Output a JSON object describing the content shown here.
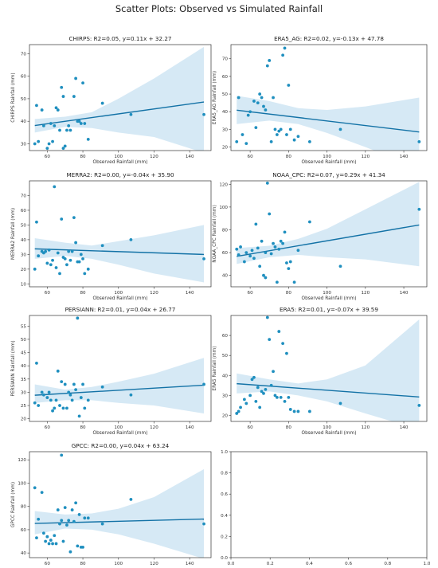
{
  "figure_title": "Scatter Plots: Observed vs Simulated Rainfall",
  "colors": {
    "point": "#1f8fbf",
    "line": "#1372a6",
    "band": "#cfe5f3",
    "axis": "#333333"
  },
  "chart_data": [
    {
      "type": "scatter",
      "title": "CHIRPS: R2=0.05, y=0.11x + 32.27",
      "xlabel": "Observed Rainfall (mm)",
      "ylabel": "CHIRPS Rainfall (mm)",
      "xlim": [
        50,
        152
      ],
      "ylim": [
        27,
        74
      ],
      "xticks": [
        60,
        80,
        100,
        120,
        140
      ],
      "yticks": [
        30,
        40,
        50,
        60,
        70
      ],
      "fit": {
        "slope": 0.11,
        "intercept": 32.27
      },
      "band": {
        "upper": [
          [
            53,
            41
          ],
          [
            70,
            42
          ],
          [
            85,
            44
          ],
          [
            100,
            50
          ],
          [
            120,
            59
          ],
          [
            148,
            73
          ]
        ],
        "lower": [
          [
            53,
            35
          ],
          [
            70,
            37.5
          ],
          [
            85,
            37
          ],
          [
            100,
            35
          ],
          [
            120,
            33
          ],
          [
            148,
            26
          ]
        ]
      },
      "x": [
        53,
        54,
        55,
        57,
        58,
        60,
        61,
        62,
        63,
        64,
        65,
        66,
        67,
        68,
        69,
        69,
        70,
        71,
        72,
        73,
        75,
        76,
        77,
        78,
        79,
        80,
        81,
        83,
        91,
        107,
        148
      ],
      "y": [
        30,
        47,
        31,
        45,
        38,
        28,
        30,
        39,
        31,
        38,
        46,
        45,
        36,
        55,
        51,
        28,
        29,
        36,
        38,
        36,
        51,
        59,
        40,
        40,
        39,
        57,
        39,
        32,
        48,
        43,
        43
      ]
    },
    {
      "type": "scatter",
      "title": "ERA5_AG: R2=0.02, y=-0.13x + 47.78",
      "xlabel": "Observed Rainfall (mm)",
      "ylabel": "ERA5_AG Rainfall (mm)",
      "xlim": [
        50,
        152
      ],
      "ylim": [
        18,
        78
      ],
      "xticks": [
        60,
        80,
        100,
        120,
        140
      ],
      "yticks": [
        20,
        30,
        40,
        50,
        60,
        70
      ],
      "fit": {
        "slope": -0.13,
        "intercept": 47.78
      },
      "band": {
        "upper": [
          [
            53,
            49
          ],
          [
            70,
            46
          ],
          [
            85,
            42
          ],
          [
            100,
            41
          ],
          [
            120,
            43
          ],
          [
            148,
            48
          ]
        ],
        "lower": [
          [
            53,
            33
          ],
          [
            70,
            35
          ],
          [
            85,
            33
          ],
          [
            100,
            28
          ],
          [
            120,
            20
          ],
          [
            148,
            8
          ]
        ]
      },
      "x": [
        53,
        54,
        56,
        58,
        59,
        60,
        62,
        63,
        64,
        65,
        66,
        67,
        68,
        69,
        70,
        71,
        72,
        73,
        74,
        75,
        76,
        77,
        78,
        79,
        80,
        81,
        83,
        85,
        91,
        107,
        148
      ],
      "y": [
        23,
        48,
        27,
        22,
        38,
        40,
        46,
        31,
        45,
        50,
        48,
        43,
        41,
        66,
        69,
        23,
        48,
        30,
        27,
        29,
        30,
        72,
        76,
        27,
        55,
        30,
        24,
        26,
        23,
        30,
        23
      ]
    },
    {
      "type": "scatter",
      "title": "MERRA2: R2=0.00, y=-0.04x + 35.90",
      "xlabel": "Observed Rainfall (mm)",
      "ylabel": "MERRA2 Rainfall (mm)",
      "xlim": [
        50,
        152
      ],
      "ylim": [
        8,
        80
      ],
      "xticks": [
        60,
        80,
        100,
        120,
        140
      ],
      "yticks": [
        10,
        20,
        30,
        40,
        50,
        60,
        70
      ],
      "fit": {
        "slope": -0.04,
        "intercept": 35.9
      },
      "band": {
        "upper": [
          [
            53,
            41
          ],
          [
            70,
            38
          ],
          [
            85,
            36
          ],
          [
            100,
            39
          ],
          [
            120,
            43
          ],
          [
            148,
            50
          ]
        ],
        "lower": [
          [
            53,
            27
          ],
          [
            70,
            29
          ],
          [
            85,
            27
          ],
          [
            100,
            23
          ],
          [
            120,
            17
          ],
          [
            148,
            11
          ]
        ]
      },
      "x": [
        53,
        54,
        55,
        57,
        58,
        59,
        60,
        61,
        62,
        63,
        64,
        65,
        66,
        67,
        68,
        69,
        70,
        71,
        72,
        73,
        74,
        75,
        76,
        77,
        78,
        79,
        80,
        81,
        83,
        91,
        107,
        148
      ],
      "y": [
        20,
        52,
        29,
        32,
        31,
        32,
        24,
        33,
        23,
        26,
        76,
        21,
        31,
        17,
        54,
        28,
        27,
        23,
        32,
        26,
        32,
        55,
        38,
        25,
        25,
        30,
        27,
        17,
        20,
        36,
        40,
        27
      ]
    },
    {
      "type": "scatter",
      "title": "NOAA_CPC: R2=0.07, y=0.29x + 41.34",
      "xlabel": "Observed Rainfall (mm)",
      "ylabel": "NOAA_CPC Rainfall (mm)",
      "xlim": [
        50,
        152
      ],
      "ylim": [
        30,
        123
      ],
      "xticks": [
        60,
        80,
        100,
        120,
        140
      ],
      "yticks": [
        40,
        60,
        80,
        100,
        120
      ],
      "fit": {
        "slope": 0.29,
        "intercept": 41.34
      },
      "band": {
        "upper": [
          [
            53,
            64
          ],
          [
            70,
            66
          ],
          [
            85,
            72
          ],
          [
            100,
            81
          ],
          [
            120,
            98
          ],
          [
            148,
            122
          ]
        ],
        "lower": [
          [
            53,
            50
          ],
          [
            70,
            56
          ],
          [
            85,
            58
          ],
          [
            100,
            56
          ],
          [
            120,
            54
          ],
          [
            148,
            48
          ]
        ]
      },
      "x": [
        53,
        54,
        55,
        57,
        58,
        60,
        61,
        62,
        63,
        64,
        65,
        66,
        67,
        68,
        68,
        69,
        70,
        71,
        72,
        73,
        74,
        75,
        76,
        77,
        78,
        79,
        80,
        81,
        83,
        85,
        91,
        107,
        148
      ],
      "y": [
        63,
        58,
        65,
        52,
        60,
        57,
        62,
        55,
        85,
        64,
        48,
        70,
        40,
        60,
        38,
        121,
        94,
        59,
        68,
        65,
        34,
        63,
        70,
        68,
        78,
        51,
        46,
        52,
        34,
        62,
        87,
        48,
        98
      ]
    },
    {
      "type": "scatter",
      "title": "PERSIANN: R2=0.01, y=0.04x + 26.77",
      "xlabel": "Observed Rainfall (mm)",
      "ylabel": "PERSIANN Rainfall (mm)",
      "xlim": [
        50,
        152
      ],
      "ylim": [
        19,
        59
      ],
      "xticks": [
        60,
        80,
        100,
        120,
        140
      ],
      "yticks": [
        20,
        25,
        30,
        35,
        40,
        45,
        50,
        55
      ],
      "fit": {
        "slope": 0.04,
        "intercept": 26.77
      },
      "band": {
        "upper": [
          [
            53,
            33
          ],
          [
            70,
            31
          ],
          [
            85,
            32
          ],
          [
            100,
            34
          ],
          [
            120,
            37
          ],
          [
            148,
            43
          ]
        ],
        "lower": [
          [
            53,
            26
          ],
          [
            70,
            27
          ],
          [
            85,
            27
          ],
          [
            100,
            26
          ],
          [
            120,
            25
          ],
          [
            148,
            22
          ]
        ]
      },
      "x": [
        53,
        54,
        55,
        57,
        58,
        60,
        61,
        62,
        63,
        64,
        65,
        66,
        67,
        68,
        69,
        70,
        71,
        72,
        73,
        74,
        75,
        76,
        77,
        78,
        79,
        80,
        81,
        83,
        91,
        107,
        148
      ],
      "y": [
        26,
        41,
        25,
        30,
        29,
        28,
        30,
        27,
        23,
        24,
        27,
        38,
        25,
        34,
        24,
        33,
        24,
        30,
        29,
        27,
        33,
        31,
        58,
        21,
        28,
        33,
        24,
        27,
        32,
        29,
        33
      ]
    },
    {
      "type": "scatter",
      "title": "ERA5: R2=0.01, y=-0.07x + 39.59",
      "xlabel": "Observed Rainfall (mm)",
      "ylabel": "ERA5 Rainfall (mm)",
      "xlim": [
        50,
        152
      ],
      "ylim": [
        17,
        70
      ],
      "xticks": [
        60,
        80,
        100,
        120,
        140
      ],
      "yticks": [
        20,
        30,
        40,
        50,
        60
      ],
      "fit": {
        "slope": -0.07,
        "intercept": 39.59
      },
      "band": {
        "upper": [
          [
            53,
            41
          ],
          [
            70,
            38
          ],
          [
            85,
            36
          ],
          [
            100,
            38
          ],
          [
            120,
            45
          ],
          [
            148,
            68
          ]
        ],
        "lower": [
          [
            53,
            31
          ],
          [
            70,
            32
          ],
          [
            85,
            30
          ],
          [
            100,
            27
          ],
          [
            120,
            21
          ],
          [
            148,
            13
          ]
        ]
      },
      "x": [
        53,
        54,
        55,
        57,
        58,
        60,
        61,
        62,
        63,
        64,
        65,
        66,
        67,
        68,
        69,
        70,
        71,
        72,
        73,
        74,
        75,
        76,
        77,
        78,
        79,
        80,
        81,
        83,
        85,
        91,
        107,
        148
      ],
      "y": [
        21,
        22,
        24,
        28,
        26,
        30,
        38,
        39,
        27,
        34,
        24,
        32,
        31,
        33,
        69,
        58,
        35,
        42,
        30,
        29,
        62,
        29,
        56,
        27,
        51,
        29,
        23,
        22,
        22,
        22,
        26,
        25
      ]
    },
    {
      "type": "scatter",
      "title": "GPCC: R2=0.00, y=0.04x + 63.24",
      "xlabel": "Observed Rainfall (mm)",
      "ylabel": "GPCC Rainfall (mm)",
      "xlim": [
        50,
        152
      ],
      "ylim": [
        36,
        127
      ],
      "xticks": [
        60,
        80,
        100,
        120,
        140
      ],
      "yticks": [
        40,
        60,
        80,
        100,
        120
      ],
      "fit": {
        "slope": 0.04,
        "intercept": 63.24
      },
      "band": {
        "upper": [
          [
            53,
            76
          ],
          [
            70,
            73
          ],
          [
            85,
            74
          ],
          [
            100,
            78
          ],
          [
            120,
            88
          ],
          [
            148,
            112
          ]
        ],
        "lower": [
          [
            53,
            56
          ],
          [
            70,
            61
          ],
          [
            85,
            60
          ],
          [
            100,
            56
          ],
          [
            120,
            48
          ],
          [
            148,
            35
          ]
        ]
      },
      "x": [
        53,
        54,
        55,
        57,
        58,
        59,
        60,
        61,
        62,
        63,
        64,
        65,
        66,
        67,
        68,
        68,
        69,
        70,
        71,
        72,
        73,
        74,
        75,
        76,
        77,
        78,
        79,
        80,
        81,
        83,
        91,
        107,
        148
      ],
      "y": [
        96,
        53,
        69,
        92,
        57,
        50,
        54,
        48,
        51,
        48,
        55,
        48,
        77,
        65,
        124,
        68,
        50,
        79,
        64,
        68,
        41,
        77,
        67,
        83,
        46,
        73,
        45,
        45,
        70,
        70,
        65,
        86,
        65
      ]
    },
    {
      "type": "scatter",
      "title": "",
      "xlabel": "",
      "ylabel": "",
      "xlim": [
        0,
        1
      ],
      "ylim": [
        0,
        1
      ],
      "xticks": [
        0.0,
        0.2,
        0.4,
        0.6,
        0.8,
        1.0
      ],
      "yticks": [
        0.0,
        0.2,
        0.4,
        0.6,
        0.8,
        1.0
      ],
      "x": [],
      "y": []
    }
  ]
}
